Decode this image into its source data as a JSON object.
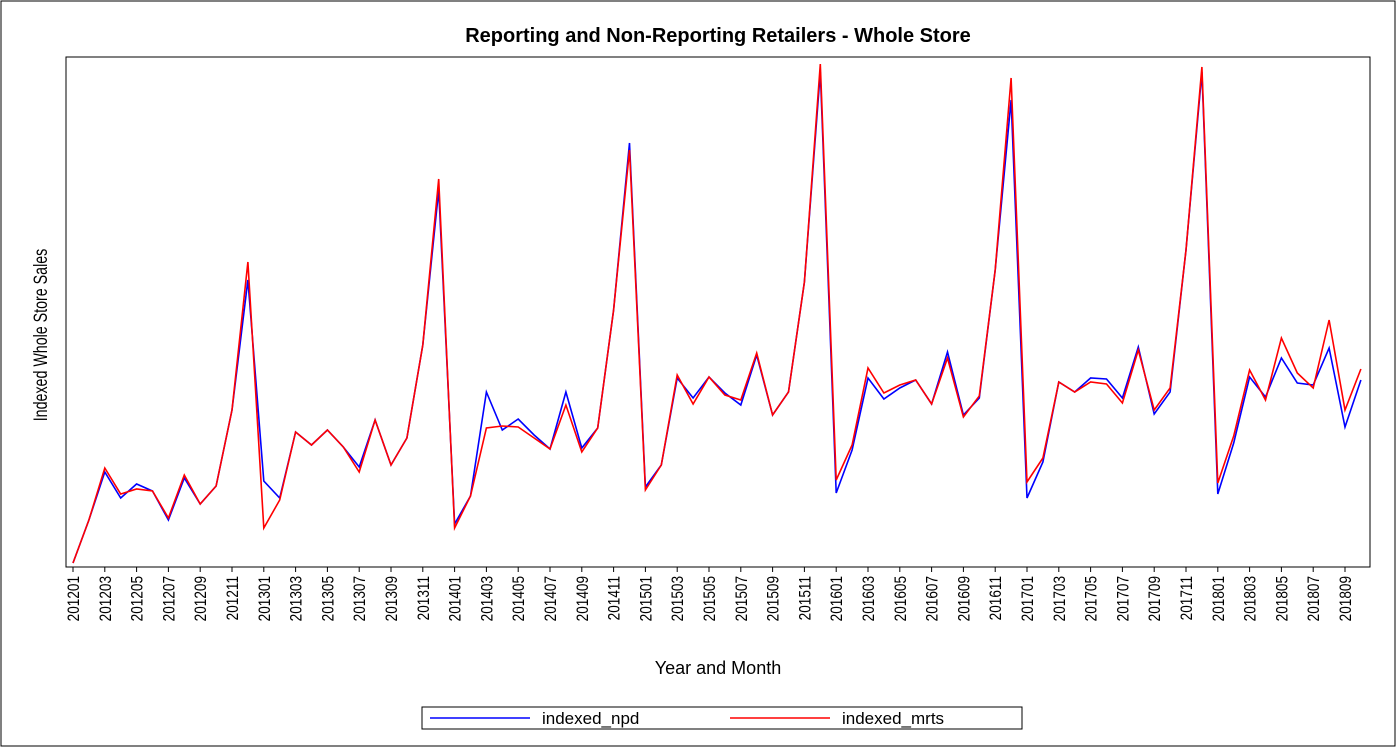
{
  "chart_data": {
    "type": "line",
    "title": "Reporting and Non-Reporting Retailers - Whole Store",
    "x_label": "Year and Month",
    "y_label": "Indexed Whole Store Sales",
    "categories": [
      "201201",
      null,
      "201203",
      null,
      "201205",
      null,
      "201207",
      null,
      "201209",
      null,
      "201211",
      null,
      "201301",
      null,
      "201303",
      null,
      "201305",
      null,
      "201307",
      null,
      "201309",
      null,
      "201311",
      null,
      "201401",
      null,
      "201403",
      null,
      "201405",
      null,
      "201407",
      null,
      "201409",
      null,
      "201411",
      null,
      "201501",
      null,
      "201503",
      null,
      "201505",
      null,
      "201507",
      null,
      "201509",
      null,
      "201511",
      null,
      "201601",
      null,
      "201603",
      null,
      "201605",
      null,
      "201607",
      null,
      "201609",
      null,
      "201611",
      null,
      "201701",
      null,
      "201703",
      null,
      "201705",
      null,
      "201707",
      null,
      "201709",
      null,
      "201711",
      null,
      "201801",
      null,
      "201803",
      null,
      "201805",
      null,
      "201807",
      null,
      "201809",
      null
    ],
    "ylim": [
      0,
      510
    ],
    "legend": "bottom",
    "series": [
      {
        "name": "indexed_npd",
        "color": "#0000ff",
        "values": [
          4,
          47,
          95,
          69,
          83,
          76,
          47,
          89,
          63,
          81,
          157,
          287,
          86,
          69,
          135,
          122,
          137,
          120,
          100,
          147,
          102,
          129,
          222,
          377,
          43,
          71,
          175,
          137,
          148,
          132,
          118,
          175,
          119,
          139,
          257,
          424,
          80,
          102,
          189,
          169,
          190,
          174,
          162,
          212,
          152,
          175,
          285,
          495,
          74,
          117,
          189,
          168,
          179,
          187,
          163,
          215,
          152,
          169,
          297,
          467,
          69,
          105,
          185,
          175,
          189,
          188,
          169,
          220,
          153,
          175,
          317,
          495,
          73,
          124,
          190,
          170,
          209,
          184,
          182,
          219,
          140,
          187
        ]
      },
      {
        "name": "indexed_mrts",
        "color": "#ff0000",
        "values": [
          4,
          47,
          99,
          73,
          78,
          76,
          49,
          92,
          63,
          81,
          157,
          305,
          39,
          67,
          135,
          122,
          137,
          120,
          95,
          147,
          102,
          129,
          222,
          388,
          39,
          71,
          139,
          141,
          140,
          129,
          118,
          162,
          115,
          139,
          257,
          417,
          77,
          102,
          192,
          163,
          190,
          172,
          167,
          214,
          152,
          175,
          285,
          503,
          87,
          122,
          199,
          174,
          182,
          187,
          163,
          209,
          150,
          171,
          297,
          489,
          85,
          109,
          185,
          175,
          185,
          183,
          164,
          217,
          157,
          179,
          317,
          500,
          84,
          131,
          197,
          167,
          229,
          194,
          179,
          247,
          157,
          198
        ]
      }
    ]
  }
}
